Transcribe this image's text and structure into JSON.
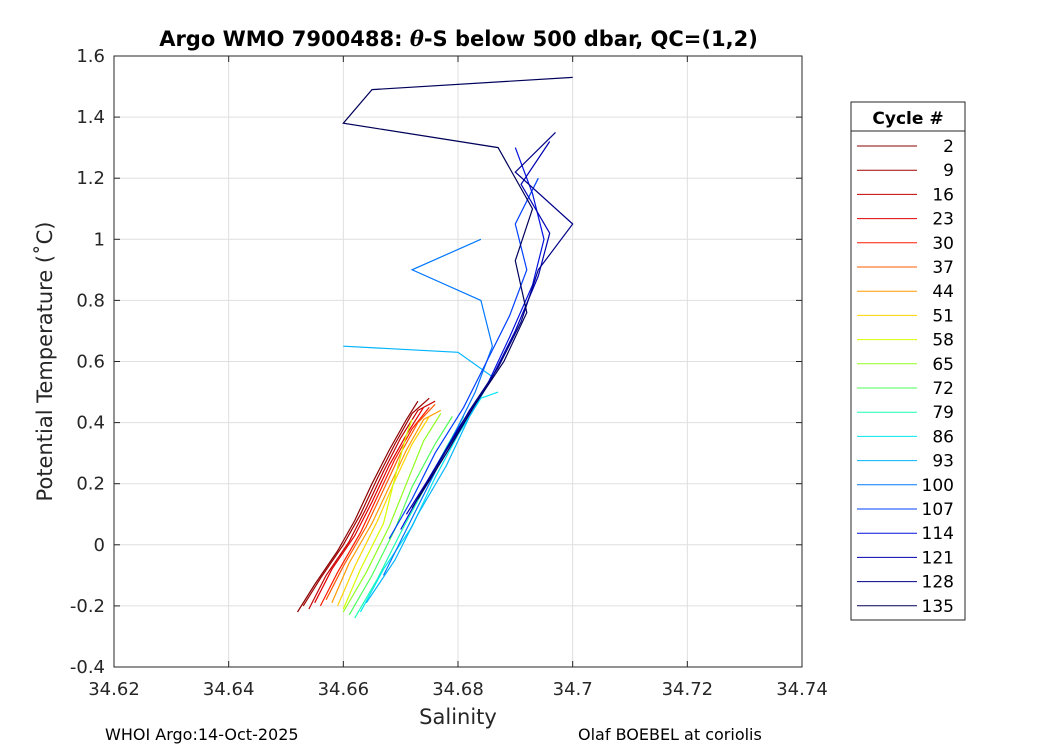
{
  "title": {
    "prefix": "Argo WMO 7900488: ",
    "symbol": "θ",
    "suffix": "-S below 500 dbar,  QC=(1,2)"
  },
  "footer": {
    "left": "WHOI Argo:14-Oct-2025",
    "right": "Olaf BOEBEL at coriolis"
  },
  "chart_data": {
    "type": "line",
    "xlabel": "Salinity",
    "ylabel": "Potential Temperature (˚C)",
    "xlim": [
      34.62,
      34.74
    ],
    "ylim": [
      -0.4,
      1.6
    ],
    "xticks": [
      34.62,
      34.64,
      34.66,
      34.68,
      34.7,
      34.72,
      34.74
    ],
    "xtick_labels": [
      "34.62",
      "34.64",
      "34.66",
      "34.68",
      "34.7",
      "34.72",
      "34.74"
    ],
    "yticks": [
      -0.4,
      -0.2,
      0,
      0.2,
      0.4,
      0.6,
      0.8,
      1,
      1.2,
      1.4,
      1.6
    ],
    "ytick_labels": [
      "-0.4",
      "-0.2",
      "0",
      "0.2",
      "0.4",
      "0.6",
      "0.8",
      "1",
      "1.2",
      "1.4",
      "1.6"
    ],
    "grid": true,
    "legend_title": "Cycle #",
    "legend_position": "outside-right",
    "colormap": "jet (cycle 2 = dark red to cycle 135 = dark blue)",
    "series": [
      {
        "name": "2",
        "color": "#8b0000",
        "points": [
          [
            34.652,
            -0.22
          ],
          [
            34.655,
            -0.13
          ],
          [
            34.659,
            -0.02
          ],
          [
            34.662,
            0.08
          ],
          [
            34.665,
            0.2
          ],
          [
            34.668,
            0.31
          ],
          [
            34.671,
            0.41
          ],
          [
            34.673,
            0.47
          ]
        ]
      },
      {
        "name": "9",
        "color": "#a00000",
        "points": [
          [
            34.653,
            -0.2
          ],
          [
            34.656,
            -0.11
          ],
          [
            34.66,
            0.0
          ],
          [
            34.663,
            0.1
          ],
          [
            34.666,
            0.22
          ],
          [
            34.669,
            0.33
          ],
          [
            34.672,
            0.43
          ],
          [
            34.675,
            0.48
          ]
        ]
      },
      {
        "name": "16",
        "color": "#c40000",
        "points": [
          [
            34.654,
            -0.21
          ],
          [
            34.657,
            -0.1
          ],
          [
            34.661,
            0.01
          ],
          [
            34.664,
            0.12
          ],
          [
            34.667,
            0.24
          ],
          [
            34.67,
            0.35
          ],
          [
            34.673,
            0.44
          ],
          [
            34.676,
            0.47
          ]
        ]
      },
      {
        "name": "23",
        "color": "#e00000",
        "points": [
          [
            34.655,
            -0.19
          ],
          [
            34.658,
            -0.08
          ],
          [
            34.662,
            0.03
          ],
          [
            34.665,
            0.14
          ],
          [
            34.668,
            0.26
          ],
          [
            34.671,
            0.36
          ],
          [
            34.674,
            0.45
          ]
        ]
      },
      {
        "name": "30",
        "color": "#ff1a00",
        "points": [
          [
            34.656,
            -0.2
          ],
          [
            34.659,
            -0.09
          ],
          [
            34.663,
            0.04
          ],
          [
            34.666,
            0.16
          ],
          [
            34.669,
            0.28
          ],
          [
            34.672,
            0.38
          ],
          [
            34.675,
            0.45
          ]
        ]
      },
      {
        "name": "37",
        "color": "#ff5a00",
        "points": [
          [
            34.657,
            -0.18
          ],
          [
            34.66,
            -0.07
          ],
          [
            34.664,
            0.06
          ],
          [
            34.667,
            0.18
          ],
          [
            34.67,
            0.3
          ],
          [
            34.673,
            0.4
          ],
          [
            34.676,
            0.46
          ]
        ]
      },
      {
        "name": "44",
        "color": "#ff9a00",
        "points": [
          [
            34.658,
            -0.19
          ],
          [
            34.661,
            -0.06
          ],
          [
            34.665,
            0.07
          ],
          [
            34.668,
            0.19
          ],
          [
            34.671,
            0.31
          ],
          [
            34.674,
            0.41
          ],
          [
            34.677,
            0.44
          ]
        ]
      },
      {
        "name": "51",
        "color": "#ffd400",
        "points": [
          [
            34.659,
            -0.2
          ],
          [
            34.662,
            -0.07
          ],
          [
            34.666,
            0.08
          ],
          [
            34.669,
            0.21
          ],
          [
            34.672,
            0.33
          ],
          [
            34.675,
            0.42
          ]
        ]
      },
      {
        "name": "58",
        "color": "#d6ff00",
        "points": [
          [
            34.66,
            -0.21
          ],
          [
            34.663,
            -0.08
          ],
          [
            34.667,
            0.07
          ],
          [
            34.669,
            0.22
          ],
          [
            34.671,
            0.36
          ],
          [
            34.672,
            0.41
          ]
        ]
      },
      {
        "name": "65",
        "color": "#90ff20",
        "points": [
          [
            34.66,
            -0.22
          ],
          [
            34.664,
            -0.09
          ],
          [
            34.668,
            0.06
          ],
          [
            34.671,
            0.2
          ],
          [
            34.674,
            0.34
          ],
          [
            34.677,
            0.43
          ]
        ]
      },
      {
        "name": "72",
        "color": "#4dff5a",
        "points": [
          [
            34.661,
            -0.23
          ],
          [
            34.665,
            -0.1
          ],
          [
            34.669,
            0.05
          ],
          [
            34.672,
            0.19
          ],
          [
            34.676,
            0.33
          ],
          [
            34.679,
            0.42
          ]
        ]
      },
      {
        "name": "79",
        "color": "#1affb0",
        "points": [
          [
            34.662,
            -0.24
          ],
          [
            34.666,
            -0.11
          ],
          [
            34.67,
            0.04
          ],
          [
            34.674,
            0.18
          ],
          [
            34.678,
            0.32
          ],
          [
            34.681,
            0.42
          ]
        ]
      },
      {
        "name": "86",
        "color": "#00e6f0",
        "points": [
          [
            34.663,
            -0.22
          ],
          [
            34.667,
            -0.08
          ],
          [
            34.672,
            0.06
          ],
          [
            34.676,
            0.22
          ],
          [
            34.68,
            0.36
          ],
          [
            34.684,
            0.48
          ],
          [
            34.687,
            0.5
          ]
        ]
      },
      {
        "name": "93",
        "color": "#00b4ff",
        "points": [
          [
            34.664,
            -0.19
          ],
          [
            34.669,
            -0.05
          ],
          [
            34.673,
            0.1
          ],
          [
            34.678,
            0.26
          ],
          [
            34.682,
            0.42
          ],
          [
            34.686,
            0.55
          ],
          [
            34.68,
            0.63
          ],
          [
            34.66,
            0.65
          ]
        ]
      },
      {
        "name": "100",
        "color": "#0078ff",
        "points": [
          [
            34.667,
            -0.1
          ],
          [
            34.671,
            0.05
          ],
          [
            34.675,
            0.2
          ],
          [
            34.679,
            0.35
          ],
          [
            34.683,
            0.5
          ],
          [
            34.686,
            0.65
          ],
          [
            34.684,
            0.8
          ],
          [
            34.672,
            0.9
          ],
          [
            34.684,
            1.0
          ]
        ]
      },
      {
        "name": "107",
        "color": "#0040ff",
        "points": [
          [
            34.668,
            0.02
          ],
          [
            34.672,
            0.15
          ],
          [
            34.676,
            0.3
          ],
          [
            34.681,
            0.45
          ],
          [
            34.685,
            0.6
          ],
          [
            34.689,
            0.75
          ],
          [
            34.692,
            0.9
          ],
          [
            34.69,
            1.05
          ],
          [
            34.694,
            1.2
          ]
        ]
      },
      {
        "name": "114",
        "color": "#0010e0",
        "points": [
          [
            34.67,
            0.05
          ],
          [
            34.675,
            0.22
          ],
          [
            34.68,
            0.38
          ],
          [
            34.685,
            0.52
          ],
          [
            34.689,
            0.68
          ],
          [
            34.693,
            0.85
          ],
          [
            34.695,
            1.0
          ],
          [
            34.693,
            1.15
          ],
          [
            34.69,
            1.3
          ]
        ]
      },
      {
        "name": "121",
        "color": "#0000b4",
        "points": [
          [
            34.671,
            0.1
          ],
          [
            34.676,
            0.25
          ],
          [
            34.681,
            0.4
          ],
          [
            34.686,
            0.55
          ],
          [
            34.69,
            0.7
          ],
          [
            34.694,
            0.88
          ],
          [
            34.696,
            1.02
          ],
          [
            34.691,
            1.18
          ],
          [
            34.696,
            1.32
          ]
        ]
      },
      {
        "name": "128",
        "color": "#000088",
        "points": [
          [
            34.672,
            0.12
          ],
          [
            34.677,
            0.28
          ],
          [
            34.682,
            0.44
          ],
          [
            34.687,
            0.58
          ],
          [
            34.691,
            0.73
          ],
          [
            34.694,
            0.9
          ],
          [
            34.7,
            1.05
          ],
          [
            34.69,
            1.22
          ],
          [
            34.697,
            1.35
          ]
        ]
      },
      {
        "name": "135",
        "color": "#00005a",
        "points": [
          [
            34.673,
            0.15
          ],
          [
            34.678,
            0.3
          ],
          [
            34.683,
            0.46
          ],
          [
            34.688,
            0.6
          ],
          [
            34.692,
            0.76
          ],
          [
            34.69,
            0.93
          ],
          [
            34.693,
            1.1
          ],
          [
            34.687,
            1.3
          ],
          [
            34.66,
            1.38
          ],
          [
            34.665,
            1.49
          ],
          [
            34.7,
            1.53
          ]
        ]
      }
    ]
  }
}
